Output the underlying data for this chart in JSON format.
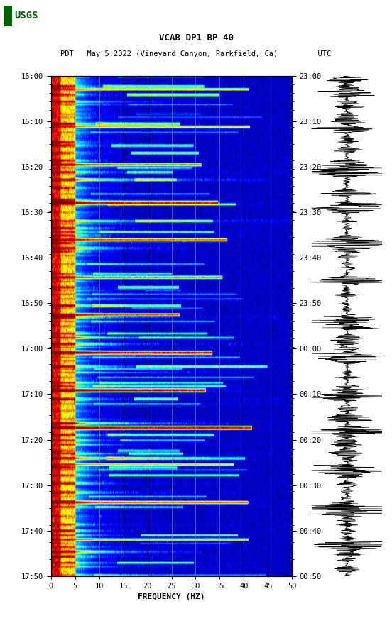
{
  "title_line1": "VCAB DP1 BP 40",
  "title_line2": "PDT   May 5,2022 (Vineyard Canyon, Parkfield, Ca)         UTC",
  "xlabel": "FREQUENCY (HZ)",
  "freq_min": 0,
  "freq_max": 50,
  "freq_ticks": [
    0,
    5,
    10,
    15,
    20,
    25,
    30,
    35,
    40,
    45,
    50
  ],
  "left_time_labels": [
    "16:00",
    "16:10",
    "16:20",
    "16:30",
    "16:40",
    "16:50",
    "17:00",
    "17:10",
    "17:20",
    "17:30",
    "17:40",
    "17:50"
  ],
  "right_time_labels": [
    "23:00",
    "23:10",
    "23:20",
    "23:30",
    "23:40",
    "23:50",
    "00:00",
    "00:10",
    "00:20",
    "00:30",
    "00:40",
    "00:50"
  ],
  "n_time_steps": 600,
  "n_freq_bins": 500,
  "background_color": "#ffffff",
  "grid_line_color": "#a0a0a0",
  "grid_line_alpha": 0.7,
  "colormap": "jet",
  "fig_width": 5.52,
  "fig_height": 8.92,
  "usgs_logo_color": "#006400",
  "vgrid_freqs": [
    5,
    10,
    15,
    20,
    25,
    30,
    35,
    40,
    45
  ]
}
